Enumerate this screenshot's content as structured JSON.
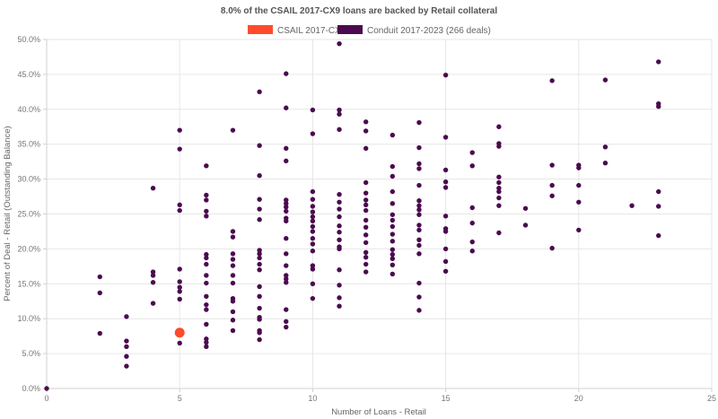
{
  "chart_data": {
    "type": "scatter",
    "title": "8.0% of the CSAIL 2017-CX9 loans are backed by Retail collateral",
    "xlabel": "Number of Loans - Retail",
    "ylabel": "Percent of Deal - Retail (Outstanding Balance)",
    "xlim": [
      0,
      25
    ],
    "ylim": [
      0,
      50
    ],
    "x_ticks": [
      "0",
      "5",
      "10",
      "15",
      "20",
      "25"
    ],
    "y_ticks": [
      "0.0%",
      "5.0%",
      "10.0%",
      "15.0%",
      "20.0%",
      "25.0%",
      "30.0%",
      "35.0%",
      "40.0%",
      "45.0%",
      "50.0%"
    ],
    "legend_position": "top-center",
    "grid": true,
    "series": [
      {
        "name": "CSAIL 2017-CX9",
        "color": "#ff4b2b",
        "points": [
          [
            5,
            8.0
          ]
        ]
      },
      {
        "name": "Conduit 2017-2023 (266 deals)",
        "color": "#4b0a4f",
        "points": [
          [
            0,
            0.0
          ],
          [
            2,
            16.0
          ],
          [
            2,
            13.7
          ],
          [
            2,
            7.9
          ],
          [
            3,
            10.3
          ],
          [
            3,
            6.8
          ],
          [
            3,
            6.0
          ],
          [
            3,
            4.6
          ],
          [
            3,
            3.2
          ],
          [
            4,
            28.7
          ],
          [
            4,
            16.7
          ],
          [
            4,
            16.2
          ],
          [
            4,
            15.2
          ],
          [
            4,
            12.2
          ],
          [
            5,
            37.0
          ],
          [
            5,
            34.3
          ],
          [
            5,
            26.3
          ],
          [
            5,
            25.5
          ],
          [
            5,
            17.1
          ],
          [
            5,
            15.3
          ],
          [
            5,
            14.5
          ],
          [
            5,
            13.9
          ],
          [
            5,
            12.8
          ],
          [
            5,
            6.5
          ],
          [
            6,
            31.9
          ],
          [
            6,
            27.7
          ],
          [
            6,
            27.0
          ],
          [
            6,
            25.4
          ],
          [
            6,
            24.7
          ],
          [
            6,
            19.2
          ],
          [
            6,
            18.7
          ],
          [
            6,
            17.8
          ],
          [
            6,
            16.2
          ],
          [
            6,
            15.1
          ],
          [
            6,
            13.2
          ],
          [
            6,
            12.0
          ],
          [
            6,
            11.3
          ],
          [
            6,
            9.2
          ],
          [
            6,
            7.1
          ],
          [
            6,
            6.6
          ],
          [
            6,
            6.0
          ],
          [
            7,
            37.0
          ],
          [
            7,
            22.5
          ],
          [
            7,
            21.7
          ],
          [
            7,
            19.3
          ],
          [
            7,
            18.5
          ],
          [
            7,
            17.6
          ],
          [
            7,
            16.2
          ],
          [
            7,
            15.1
          ],
          [
            7,
            12.9
          ],
          [
            7,
            12.5
          ],
          [
            7,
            11.0
          ],
          [
            7,
            9.8
          ],
          [
            7,
            8.3
          ],
          [
            8,
            42.5
          ],
          [
            8,
            34.8
          ],
          [
            8,
            30.5
          ],
          [
            8,
            27.1
          ],
          [
            8,
            25.7
          ],
          [
            8,
            24.2
          ],
          [
            8,
            19.8
          ],
          [
            8,
            19.3
          ],
          [
            8,
            18.7
          ],
          [
            8,
            17.8
          ],
          [
            8,
            17.0
          ],
          [
            8,
            14.6
          ],
          [
            8,
            13.2
          ],
          [
            8,
            11.5
          ],
          [
            8,
            10.2
          ],
          [
            8,
            9.9
          ],
          [
            8,
            8.3
          ],
          [
            8,
            8.0
          ],
          [
            8,
            7.0
          ],
          [
            9,
            45.1
          ],
          [
            9,
            40.2
          ],
          [
            9,
            34.4
          ],
          [
            9,
            32.6
          ],
          [
            9,
            27.0
          ],
          [
            9,
            26.5
          ],
          [
            9,
            26.0
          ],
          [
            9,
            25.4
          ],
          [
            9,
            24.4
          ],
          [
            9,
            24.0
          ],
          [
            9,
            21.5
          ],
          [
            9,
            19.3
          ],
          [
            9,
            17.6
          ],
          [
            9,
            16.2
          ],
          [
            9,
            15.7
          ],
          [
            9,
            15.2
          ],
          [
            9,
            11.3
          ],
          [
            9,
            9.6
          ],
          [
            9,
            8.8
          ],
          [
            10,
            39.9
          ],
          [
            10,
            36.5
          ],
          [
            10,
            28.2
          ],
          [
            10,
            27.1
          ],
          [
            10,
            26.1
          ],
          [
            10,
            25.3
          ],
          [
            10,
            24.6
          ],
          [
            10,
            24.0
          ],
          [
            10,
            23.2
          ],
          [
            10,
            22.5
          ],
          [
            10,
            21.5
          ],
          [
            10,
            20.7
          ],
          [
            10,
            19.7
          ],
          [
            10,
            17.6
          ],
          [
            10,
            17.1
          ],
          [
            10,
            15.0
          ],
          [
            10,
            12.9
          ],
          [
            11,
            49.4
          ],
          [
            11,
            39.9
          ],
          [
            11,
            39.3
          ],
          [
            11,
            37.1
          ],
          [
            11,
            27.8
          ],
          [
            11,
            26.7
          ],
          [
            11,
            25.7
          ],
          [
            11,
            24.6
          ],
          [
            11,
            23.3
          ],
          [
            11,
            22.4
          ],
          [
            11,
            21.3
          ],
          [
            11,
            20.3
          ],
          [
            11,
            20.0
          ],
          [
            11,
            17.0
          ],
          [
            11,
            14.8
          ],
          [
            11,
            13.0
          ],
          [
            11,
            11.8
          ],
          [
            12,
            38.2
          ],
          [
            12,
            36.9
          ],
          [
            12,
            34.4
          ],
          [
            12,
            29.5
          ],
          [
            12,
            28.0
          ],
          [
            12,
            27.0
          ],
          [
            12,
            26.3
          ],
          [
            12,
            25.5
          ],
          [
            12,
            24.1
          ],
          [
            12,
            23.1
          ],
          [
            12,
            22.0
          ],
          [
            12,
            20.9
          ],
          [
            12,
            19.5
          ],
          [
            12,
            18.8
          ],
          [
            12,
            17.8
          ],
          [
            12,
            16.7
          ],
          [
            13,
            36.3
          ],
          [
            13,
            31.8
          ],
          [
            13,
            30.4
          ],
          [
            13,
            28.2
          ],
          [
            13,
            26.5
          ],
          [
            13,
            24.9
          ],
          [
            13,
            24.1
          ],
          [
            13,
            23.2
          ],
          [
            13,
            22.1
          ],
          [
            13,
            21.1
          ],
          [
            13,
            19.9
          ],
          [
            13,
            19.2
          ],
          [
            13,
            18.6
          ],
          [
            13,
            17.7
          ],
          [
            13,
            16.4
          ],
          [
            14,
            38.1
          ],
          [
            14,
            34.5
          ],
          [
            14,
            32.2
          ],
          [
            14,
            31.5
          ],
          [
            14,
            29.1
          ],
          [
            14,
            26.9
          ],
          [
            14,
            26.2
          ],
          [
            14,
            25.6
          ],
          [
            14,
            24.9
          ],
          [
            14,
            23.4
          ],
          [
            14,
            22.7
          ],
          [
            14,
            21.3
          ],
          [
            14,
            20.5
          ],
          [
            14,
            19.3
          ],
          [
            14,
            15.1
          ],
          [
            14,
            13.1
          ],
          [
            14,
            11.2
          ],
          [
            15,
            44.9
          ],
          [
            15,
            36.0
          ],
          [
            15,
            31.3
          ],
          [
            15,
            29.6
          ],
          [
            15,
            28.8
          ],
          [
            15,
            24.7
          ],
          [
            15,
            22.9
          ],
          [
            15,
            22.5
          ],
          [
            15,
            20.0
          ],
          [
            15,
            18.2
          ],
          [
            15,
            16.8
          ],
          [
            16,
            33.8
          ],
          [
            16,
            31.9
          ],
          [
            16,
            25.9
          ],
          [
            16,
            23.7
          ],
          [
            16,
            21.0
          ],
          [
            16,
            19.7
          ],
          [
            17,
            37.5
          ],
          [
            17,
            35.1
          ],
          [
            17,
            34.7
          ],
          [
            17,
            30.3
          ],
          [
            17,
            29.5
          ],
          [
            17,
            28.7
          ],
          [
            17,
            28.2
          ],
          [
            17,
            27.3
          ],
          [
            17,
            26.2
          ],
          [
            17,
            22.3
          ],
          [
            18,
            25.8
          ],
          [
            18,
            23.4
          ],
          [
            19,
            44.1
          ],
          [
            19,
            32.0
          ],
          [
            19,
            29.1
          ],
          [
            19,
            27.6
          ],
          [
            19,
            20.1
          ],
          [
            20,
            32.0
          ],
          [
            20,
            31.6
          ],
          [
            20,
            29.1
          ],
          [
            20,
            26.7
          ],
          [
            20,
            22.7
          ],
          [
            21,
            44.2
          ],
          [
            21,
            34.6
          ],
          [
            21,
            32.3
          ],
          [
            22,
            26.2
          ],
          [
            23,
            46.8
          ],
          [
            23,
            40.8
          ],
          [
            23,
            40.4
          ],
          [
            23,
            28.2
          ],
          [
            23,
            26.1
          ],
          [
            23,
            21.9
          ]
        ]
      }
    ]
  }
}
